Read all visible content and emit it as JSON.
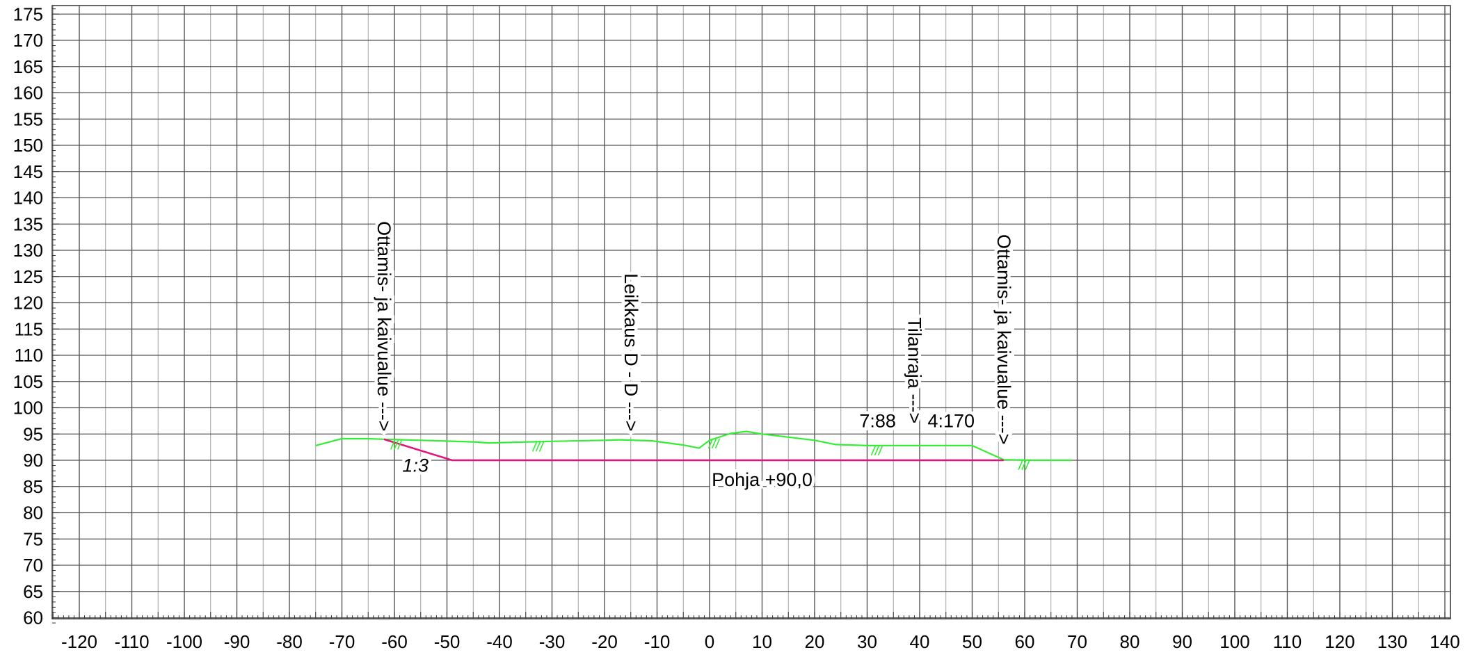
{
  "chart_data": {
    "type": "line",
    "title": "",
    "xlabel": "",
    "ylabel": "",
    "xlim": [
      -125,
      140
    ],
    "ylim": [
      59,
      176
    ],
    "grid": true,
    "x_ticks": [
      -120,
      -110,
      -100,
      -90,
      -80,
      -70,
      -60,
      -50,
      -40,
      -30,
      -20,
      -10,
      0,
      10,
      20,
      30,
      40,
      50,
      60,
      70,
      80,
      90,
      100,
      110,
      120,
      130,
      140
    ],
    "y_ticks": [
      60,
      65,
      70,
      75,
      80,
      85,
      90,
      95,
      100,
      105,
      110,
      115,
      120,
      125,
      130,
      135,
      140,
      145,
      150,
      155,
      160,
      165,
      170,
      175
    ],
    "colors": {
      "ground": "#33ee33",
      "design": "#e0147a",
      "grid_major": "#555555",
      "grid_minor": "#9a9a9a"
    },
    "series": [
      {
        "points": [
          [
            -75,
            92.8
          ],
          [
            -70,
            94.1
          ],
          [
            -65,
            94.1
          ],
          [
            -62,
            94.0
          ],
          [
            -55,
            93.8
          ],
          [
            -45,
            93.5
          ],
          [
            -42,
            93.3
          ],
          [
            -30,
            93.6
          ],
          [
            -20,
            93.8
          ],
          [
            -17,
            93.9
          ],
          [
            -11,
            93.7
          ],
          [
            -5,
            92.9
          ],
          [
            -2,
            92.3
          ],
          [
            0,
            93.8
          ],
          [
            4,
            95.1
          ],
          [
            7,
            95.5
          ],
          [
            10,
            95.0
          ],
          [
            15,
            94.4
          ],
          [
            20,
            93.8
          ],
          [
            24,
            93.0
          ],
          [
            30,
            92.8
          ],
          [
            40,
            92.8
          ],
          [
            50,
            92.8
          ],
          [
            56,
            90.1
          ],
          [
            62,
            90.0
          ],
          [
            69,
            90.0
          ]
        ]
      },
      {
        "points": [
          [
            -62,
            94.0
          ],
          [
            -49,
            90.0
          ],
          [
            56,
            90.0
          ]
        ]
      }
    ],
    "annotations": [
      {
        "text": "Ottamis- ja kaivualue --->",
        "x": -62,
        "y": 95.5,
        "rotated": true
      },
      {
        "text": "Leikkaus D - D --->",
        "x": -15,
        "y": 95.5,
        "rotated": true
      },
      {
        "text": "Tilanraja --->",
        "x": 39,
        "y": 97,
        "rotated": true
      },
      {
        "text": "Ottamis- ja kaivualue --->",
        "x": 56,
        "y": 93,
        "rotated": true
      },
      {
        "text": "7:88",
        "x": 32,
        "y": 97.5,
        "rotated": false
      },
      {
        "text": "4:170",
        "x": 46,
        "y": 97.5,
        "rotated": false
      },
      {
        "text": "1:3",
        "x": -56,
        "y": 89,
        "rotated": false
      },
      {
        "text": "Pohja +90,0",
        "x": 10,
        "y": 86.3,
        "rotated": false
      }
    ],
    "hatch_marks_x": [
      -59.5,
      -32.5,
      1,
      32,
      60
    ]
  }
}
